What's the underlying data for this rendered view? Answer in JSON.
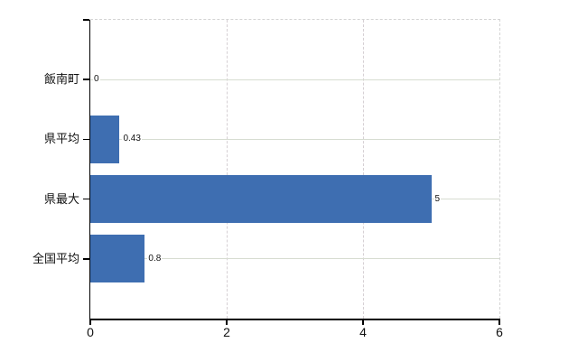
{
  "chart_data": {
    "type": "bar",
    "orientation": "horizontal",
    "title": "",
    "xlabel": "",
    "ylabel": "",
    "categories": [
      "飯南町",
      "県平均",
      "県最大",
      "全国平均"
    ],
    "values": [
      0,
      0.43,
      5,
      0.8
    ],
    "data_labels": [
      "0",
      "0.43",
      "5",
      "0.8"
    ],
    "xlim": [
      0,
      6
    ],
    "x_tick_labels": [
      "0",
      "2",
      "4",
      "6"
    ],
    "x_tick_values": [
      0,
      2,
      4,
      6
    ],
    "grid": "on",
    "legend": "none",
    "gridline_style": {
      "horizontal": "solid, at each category center",
      "vertical": "dashed, at ticks 2 and 4",
      "plot_border_top_right": "dashed"
    },
    "colors": {
      "bar": "#3e6eb1",
      "axis": "#000000",
      "text": "#111111",
      "gridline_horizontal": "#d7ddd1",
      "gridline_vertical": "#d6d0d4",
      "border_dashed": "#d4d4d4",
      "background": "#ffffff"
    }
  }
}
